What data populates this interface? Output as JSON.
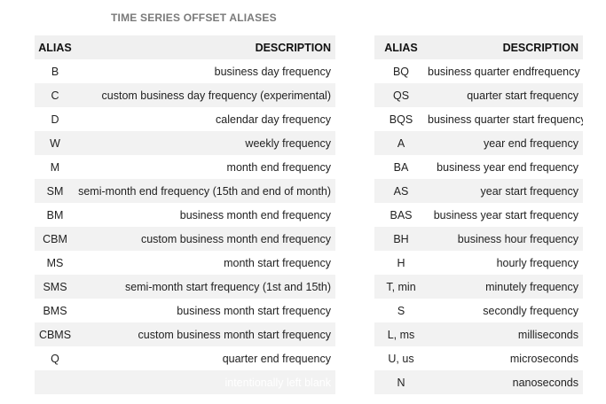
{
  "title": "TIME SERIES OFFSET ALIASES",
  "headers": {
    "alias": "ALIAS",
    "description": "DESCRIPTION"
  },
  "left_rows": [
    {
      "alias": "B",
      "description": "business day frequency"
    },
    {
      "alias": "C",
      "description": "custom business day frequency (experimental)"
    },
    {
      "alias": "D",
      "description": "calendar day frequency"
    },
    {
      "alias": "W",
      "description": "weekly frequency"
    },
    {
      "alias": "M",
      "description": "month end frequency"
    },
    {
      "alias": "SM",
      "description": "semi-month end frequency (15th and end of month)"
    },
    {
      "alias": "BM",
      "description": "business month end frequency"
    },
    {
      "alias": "CBM",
      "description": "custom business month end frequency"
    },
    {
      "alias": "MS",
      "description": "month start frequency"
    },
    {
      "alias": "SMS",
      "description": "semi-month start frequency (1st and 15th)"
    },
    {
      "alias": "BMS",
      "description": "business month start frequency"
    },
    {
      "alias": "CBMS",
      "description": "custom business month start frequency"
    },
    {
      "alias": "Q",
      "description": "quarter end frequency"
    },
    {
      "alias": "",
      "description": "intentionally left blank"
    }
  ],
  "right_rows": [
    {
      "alias": "BQ",
      "description": "business quarter endfrequency"
    },
    {
      "alias": "QS",
      "description": "quarter start frequency"
    },
    {
      "alias": "BQS",
      "description": "business quarter start frequency"
    },
    {
      "alias": "A",
      "description": "year end frequency"
    },
    {
      "alias": "BA",
      "description": "business year end frequency"
    },
    {
      "alias": "AS",
      "description": "year start frequency"
    },
    {
      "alias": "BAS",
      "description": "business year start frequency"
    },
    {
      "alias": "BH",
      "description": "business hour frequency"
    },
    {
      "alias": "H",
      "description": "hourly frequency"
    },
    {
      "alias": "T, min",
      "description": "minutely frequency"
    },
    {
      "alias": "S",
      "description": "secondly frequency"
    },
    {
      "alias": "L, ms",
      "description": "milliseconds"
    },
    {
      "alias": "U, us",
      "description": "microseconds"
    },
    {
      "alias": "N",
      "description": "nanoseconds"
    }
  ]
}
